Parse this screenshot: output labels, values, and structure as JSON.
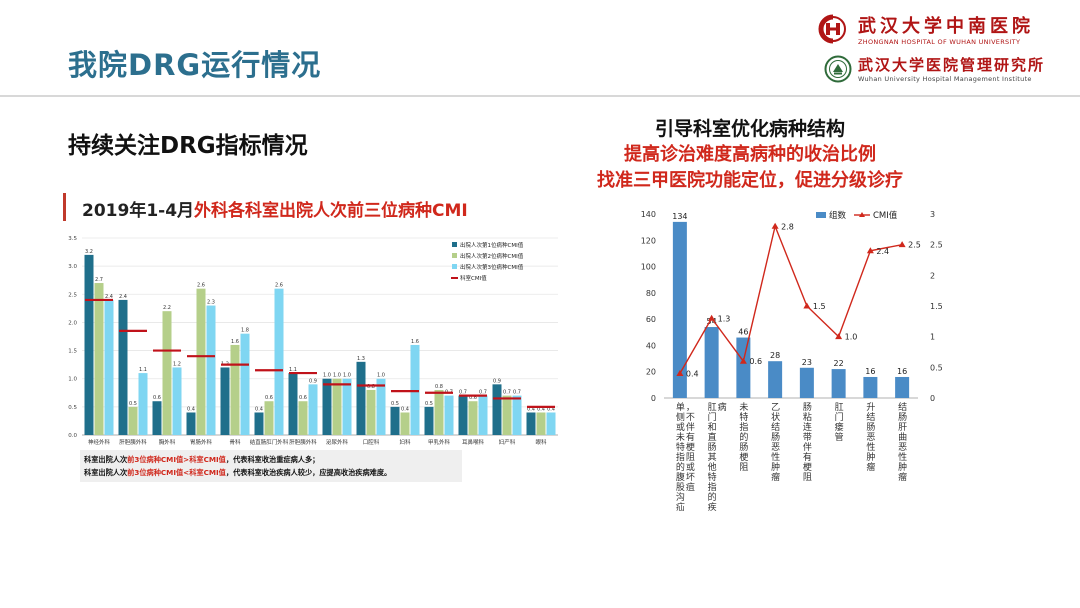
{
  "page": {
    "title": "我院DRG运行情况",
    "section_heading": "持续关注DRG指标情况"
  },
  "logo": {
    "hospital_cn": "武汉大学中南医院",
    "hospital_en": "ZHONGNAN HOSPITAL OF WUHAN UNIVERSITY",
    "institute_cn": "武汉大学医院管理研究所",
    "institute_en": "Wuhan University Hospital Management Institute",
    "brand_color": "#b01515"
  },
  "left_panel": {
    "heading_black": "2019年1-4月",
    "heading_red": "外科各科室出院人次前三位病种CMI",
    "note_line1_a": "科室出院人次",
    "note_line1_b": "前3位病种CMI值>科室CMI值",
    "note_line1_c": "，代表科室收治重症病人多；",
    "note_line2_a": "科室出院人次",
    "note_line2_b": "前3位病种CMI值<科室CMI值",
    "note_line2_c": "，代表科室收治疾病人较少，应提高收治疾病难度。"
  },
  "right_panel": {
    "heading1": "引导科室优化病种结构",
    "heading2": "提高诊治难度高病种的收治比例",
    "heading3": "找准三甲医院功能定位，促进分级诊疗"
  },
  "chart_data": [
    {
      "type": "bar",
      "categories": [
        "神经外科",
        "肝胆胰外科",
        "胸外科",
        "胃肠外科",
        "骨科",
        "结直肠肛门外科",
        "肝胆胰外科",
        "泌尿外科",
        "口腔科",
        "妇科",
        "甲乳外科",
        "耳鼻喉科",
        "妇产科",
        "眼科"
      ],
      "series": [
        {
          "name": "出院人次第1位病种CMI值",
          "values": [
            3.2,
            2.4,
            0.6,
            0.4,
            1.2,
            0.4,
            1.1,
            1.0,
            1.3,
            0.5,
            0.5,
            0.7,
            0.9,
            0.4
          ],
          "color": "#1f6f8b"
        },
        {
          "name": "出院人次第2位病种CMI值",
          "values": [
            2.7,
            0.5,
            2.2,
            2.6,
            1.6,
            0.6,
            0.6,
            1.0,
            0.8,
            0.4,
            0.8,
            0.6,
            0.7,
            0.4
          ],
          "color": "#b5cf8a"
        },
        {
          "name": "出院人次第3位病种CMI值",
          "values": [
            2.4,
            1.1,
            1.2,
            2.3,
            1.8,
            2.6,
            0.9,
            1.0,
            1.0,
            1.6,
            0.7,
            0.7,
            0.7,
            0.4
          ],
          "color": "#7fd6f2"
        }
      ],
      "reference": {
        "name": "科室CMI值",
        "values": [
          2.4,
          1.85,
          1.5,
          1.4,
          1.25,
          1.15,
          1.1,
          0.9,
          0.88,
          0.78,
          0.75,
          0.7,
          0.65,
          0.5
        ],
        "color": "#c0121a"
      },
      "ylim": [
        0,
        3.5
      ],
      "yticks": [
        "0.0",
        "0.5",
        "1.0",
        "1.5",
        "2.0",
        "2.5",
        "3.0",
        "3.5"
      ],
      "legend": "top-right",
      "grid": true
    },
    {
      "type": "bar",
      "categories": [
        "单侧或未特指的腹股沟疝，不伴有梗阻或坏疽",
        "肛门和直肠其他特指的疾病",
        "未特指的肠梗阻",
        "乙状结肠恶性肿瘤",
        "肠粘连带伴有梗阻",
        "肛门瘘管",
        "升结肠恶性肿瘤",
        "结肠肝曲恶性肿瘤"
      ],
      "series": [
        {
          "name": "组数",
          "values": [
            134,
            54,
            46,
            28,
            23,
            22,
            16,
            16
          ],
          "color": "#4a8bc6"
        }
      ],
      "line": {
        "name": "CMI值",
        "values": [
          0.4,
          1.3,
          0.6,
          2.8,
          1.5,
          1.0,
          2.4,
          2.5
        ],
        "color": "#d0281c"
      },
      "ylim": [
        0,
        140
      ],
      "y2lim": [
        0,
        3
      ],
      "yticks": [
        "0",
        "20",
        "40",
        "60",
        "80",
        "100",
        "120",
        "140"
      ],
      "y2ticks": [
        "0",
        "0.5",
        "1",
        "1.5",
        "2",
        "2.5",
        "3"
      ],
      "legend": "top-right",
      "grid": false
    }
  ]
}
